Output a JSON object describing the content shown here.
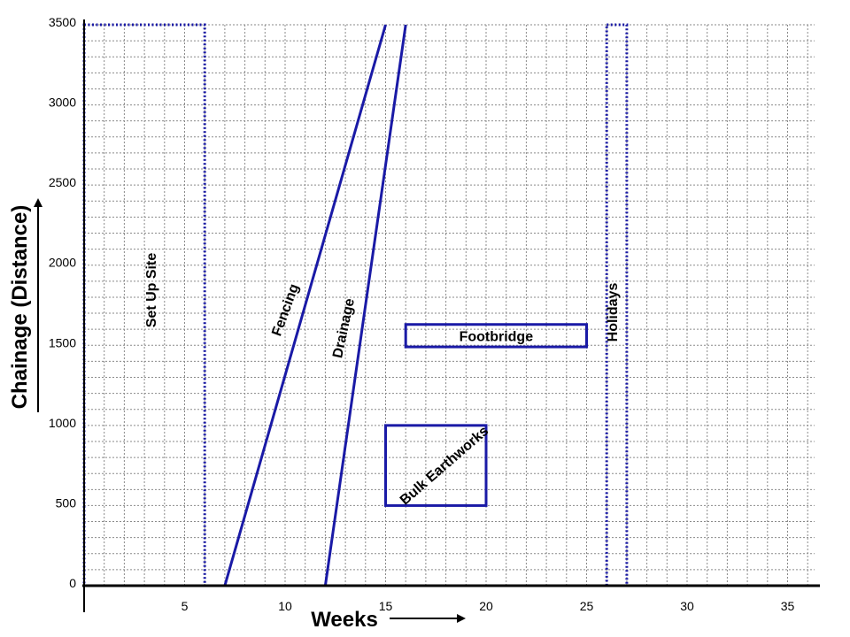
{
  "chart_data": {
    "type": "line",
    "subtype": "linear-schedule (time-chainage)",
    "xlabel": "Weeks",
    "ylabel": "Chainage (Distance)",
    "xlim": [
      0,
      36
    ],
    "ylim": [
      0,
      3500
    ],
    "x_ticks": [
      5,
      10,
      15,
      20,
      25,
      30,
      35
    ],
    "y_ticks": [
      0,
      500,
      1000,
      1500,
      2000,
      2500,
      3000,
      3500
    ],
    "x_minor_step": 1,
    "y_minor_step": 100,
    "grid": true,
    "line_color": "#1a1aa6",
    "activities": [
      {
        "id": "setup",
        "name": "Set Up Site",
        "kind": "dotted-box",
        "x": [
          0,
          6
        ],
        "y": [
          0,
          3500
        ]
      },
      {
        "id": "holidays",
        "name": "Holidays",
        "kind": "dotted-box",
        "x": [
          26,
          27
        ],
        "y": [
          0,
          3500
        ]
      },
      {
        "id": "fencing",
        "name": "Fencing",
        "kind": "line",
        "points": [
          [
            7,
            0
          ],
          [
            15,
            3500
          ]
        ]
      },
      {
        "id": "drainage",
        "name": "Drainage",
        "kind": "line",
        "points": [
          [
            12,
            0
          ],
          [
            16,
            3500
          ]
        ]
      },
      {
        "id": "footbridge",
        "name": "Footbridge",
        "kind": "box",
        "x": [
          16,
          25
        ],
        "y": [
          1490,
          1630
        ]
      },
      {
        "id": "earthworks",
        "name": "Bulk Earthworks",
        "kind": "box",
        "x": [
          15,
          20
        ],
        "y": [
          500,
          1000
        ]
      }
    ]
  }
}
